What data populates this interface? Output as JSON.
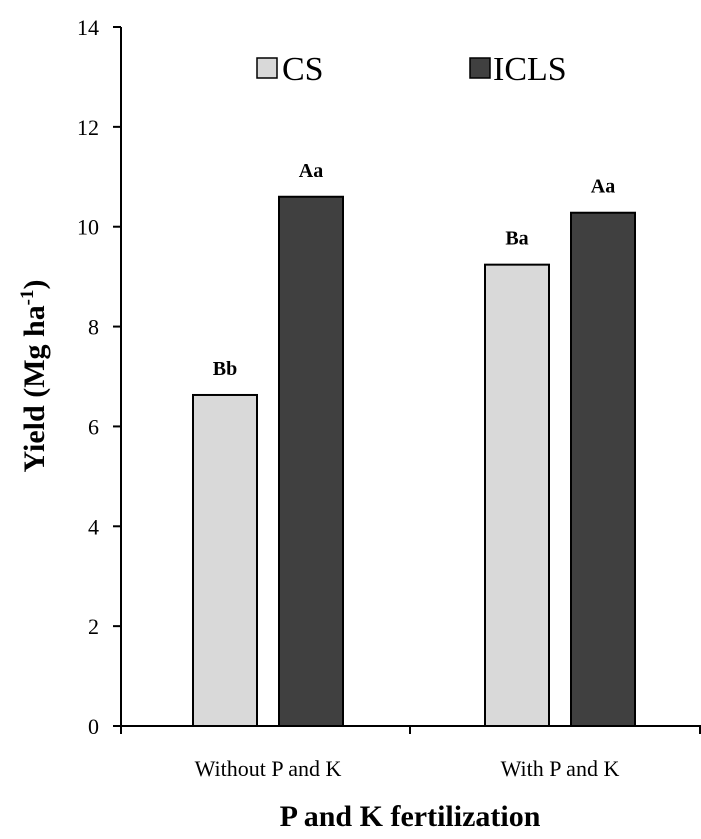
{
  "chart_data": {
    "type": "bar",
    "categories": [
      "Without P and K",
      "With P and K"
    ],
    "series": [
      {
        "name": "CS",
        "color": "#d9d9d9",
        "values": [
          6.63,
          9.24
        ],
        "labels": [
          "Bb",
          "Ba"
        ]
      },
      {
        "name": "ICLS",
        "color": "#404040",
        "values": [
          10.6,
          10.28
        ],
        "labels": [
          "Aa",
          "Aa"
        ]
      }
    ],
    "xlabel": "P and K fertilization",
    "ylabel": {
      "main": "Yield (Mg ha",
      "sup": "-1",
      "close": ")"
    },
    "ylim": [
      0,
      14
    ],
    "yticks": [
      "0",
      "2",
      "4",
      "6",
      "8",
      "10",
      "12",
      "14"
    ],
    "grid": false,
    "legend_position": "top"
  }
}
